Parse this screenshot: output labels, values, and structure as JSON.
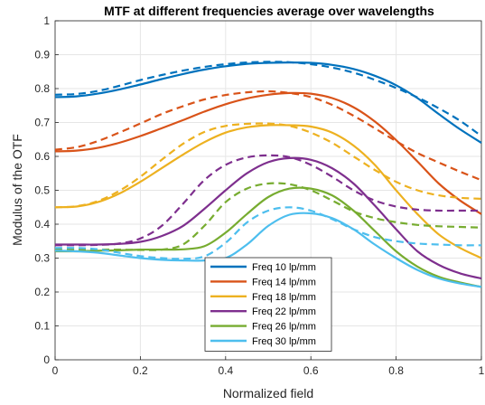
{
  "chart_data": {
    "type": "line",
    "title": "MTF at different frequencies average over wavelengths",
    "xlabel": "Normalized field",
    "ylabel": "Modulus of the OTF",
    "xlim": [
      0,
      1
    ],
    "ylim": [
      0,
      1
    ],
    "xticks": [
      "0",
      "0.2",
      "0.4",
      "0.6",
      "0.8",
      "1"
    ],
    "yticks": [
      "0",
      "0.1",
      "0.2",
      "0.3",
      "0.4",
      "0.5",
      "0.6",
      "0.7",
      "0.8",
      "0.9",
      "1"
    ],
    "grid": true,
    "legend_position": "bottom-center",
    "line_styles": {
      "solid": "solid",
      "dashed": "dashed"
    },
    "series": [
      {
        "name": "Freq 10 lp/mm",
        "color": "#0072BD",
        "x": [
          0,
          0.05,
          0.1,
          0.15,
          0.2,
          0.25,
          0.3,
          0.35,
          0.4,
          0.45,
          0.5,
          0.55,
          0.6,
          0.65,
          0.7,
          0.75,
          0.8,
          0.85,
          0.9,
          0.95,
          1
        ],
        "solid": [
          0.775,
          0.777,
          0.785,
          0.797,
          0.812,
          0.828,
          0.843,
          0.856,
          0.866,
          0.873,
          0.876,
          0.877,
          0.876,
          0.87,
          0.858,
          0.838,
          0.81,
          0.772,
          0.725,
          0.68,
          0.64
        ],
        "dashed": [
          0.782,
          0.784,
          0.793,
          0.808,
          0.825,
          0.84,
          0.853,
          0.864,
          0.872,
          0.877,
          0.879,
          0.878,
          0.872,
          0.862,
          0.847,
          0.826,
          0.802,
          0.774,
          0.742,
          0.705,
          0.66
        ]
      },
      {
        "name": "Freq 14 lp/mm",
        "color": "#D95319",
        "x": [
          0,
          0.05,
          0.1,
          0.15,
          0.2,
          0.25,
          0.3,
          0.35,
          0.4,
          0.45,
          0.5,
          0.55,
          0.6,
          0.65,
          0.7,
          0.75,
          0.8,
          0.85,
          0.9,
          0.95,
          1
        ],
        "solid": [
          0.615,
          0.617,
          0.625,
          0.64,
          0.66,
          0.683,
          0.707,
          0.732,
          0.754,
          0.771,
          0.782,
          0.787,
          0.785,
          0.772,
          0.745,
          0.703,
          0.648,
          0.585,
          0.52,
          0.47,
          0.43
        ],
        "dashed": [
          0.62,
          0.627,
          0.645,
          0.67,
          0.697,
          0.725,
          0.748,
          0.768,
          0.781,
          0.789,
          0.792,
          0.787,
          0.775,
          0.752,
          0.72,
          0.683,
          0.645,
          0.61,
          0.582,
          0.555,
          0.53
        ]
      },
      {
        "name": "Freq 18 lp/mm",
        "color": "#EDB120",
        "x": [
          0,
          0.05,
          0.1,
          0.15,
          0.2,
          0.25,
          0.3,
          0.35,
          0.4,
          0.45,
          0.5,
          0.55,
          0.6,
          0.65,
          0.7,
          0.75,
          0.8,
          0.85,
          0.9,
          0.95,
          1
        ],
        "solid": [
          0.45,
          0.452,
          0.465,
          0.49,
          0.525,
          0.565,
          0.605,
          0.642,
          0.67,
          0.686,
          0.692,
          0.692,
          0.688,
          0.67,
          0.632,
          0.575,
          0.5,
          0.43,
          0.37,
          0.33,
          0.3
        ],
        "dashed": [
          0.45,
          0.453,
          0.468,
          0.498,
          0.54,
          0.59,
          0.637,
          0.672,
          0.69,
          0.696,
          0.697,
          0.69,
          0.67,
          0.64,
          0.6,
          0.56,
          0.525,
          0.5,
          0.485,
          0.478,
          0.475
        ]
      },
      {
        "name": "Freq 22 lp/mm",
        "color": "#7E2F8E",
        "x": [
          0,
          0.05,
          0.1,
          0.15,
          0.2,
          0.25,
          0.3,
          0.35,
          0.4,
          0.45,
          0.5,
          0.55,
          0.6,
          0.65,
          0.7,
          0.75,
          0.8,
          0.85,
          0.9,
          0.95,
          1
        ],
        "solid": [
          0.34,
          0.34,
          0.34,
          0.342,
          0.348,
          0.365,
          0.395,
          0.445,
          0.5,
          0.55,
          0.583,
          0.595,
          0.59,
          0.565,
          0.52,
          0.455,
          0.385,
          0.32,
          0.28,
          0.255,
          0.24
        ],
        "dashed": [
          0.338,
          0.338,
          0.339,
          0.343,
          0.358,
          0.395,
          0.46,
          0.53,
          0.575,
          0.597,
          0.603,
          0.598,
          0.575,
          0.54,
          0.5,
          0.47,
          0.452,
          0.443,
          0.44,
          0.44,
          0.44
        ]
      },
      {
        "name": "Freq 26 lp/mm",
        "color": "#77AC30",
        "x": [
          0,
          0.05,
          0.1,
          0.15,
          0.2,
          0.25,
          0.3,
          0.35,
          0.4,
          0.45,
          0.5,
          0.55,
          0.6,
          0.65,
          0.7,
          0.75,
          0.8,
          0.85,
          0.9,
          0.95,
          1
        ],
        "solid": [
          0.32,
          0.32,
          0.322,
          0.323,
          0.325,
          0.325,
          0.326,
          0.335,
          0.375,
          0.43,
          0.48,
          0.505,
          0.505,
          0.485,
          0.44,
          0.38,
          0.32,
          0.275,
          0.245,
          0.228,
          0.215
        ],
        "dashed": [
          0.325,
          0.325,
          0.325,
          0.325,
          0.324,
          0.325,
          0.34,
          0.395,
          0.465,
          0.505,
          0.52,
          0.518,
          0.5,
          0.47,
          0.438,
          0.418,
          0.406,
          0.398,
          0.394,
          0.392,
          0.39
        ]
      },
      {
        "name": "Freq 30 lp/mm",
        "color": "#4DBEEE",
        "x": [
          0,
          0.05,
          0.1,
          0.15,
          0.2,
          0.25,
          0.3,
          0.35,
          0.4,
          0.45,
          0.5,
          0.55,
          0.6,
          0.65,
          0.7,
          0.75,
          0.8,
          0.85,
          0.9,
          0.95,
          1
        ],
        "solid": [
          0.322,
          0.32,
          0.316,
          0.308,
          0.3,
          0.295,
          0.293,
          0.293,
          0.3,
          0.34,
          0.395,
          0.428,
          0.432,
          0.418,
          0.385,
          0.34,
          0.3,
          0.265,
          0.24,
          0.225,
          0.215
        ],
        "dashed": [
          0.33,
          0.33,
          0.326,
          0.316,
          0.306,
          0.3,
          0.298,
          0.305,
          0.345,
          0.405,
          0.44,
          0.45,
          0.44,
          0.415,
          0.385,
          0.362,
          0.35,
          0.343,
          0.34,
          0.338,
          0.338
        ]
      }
    ]
  }
}
